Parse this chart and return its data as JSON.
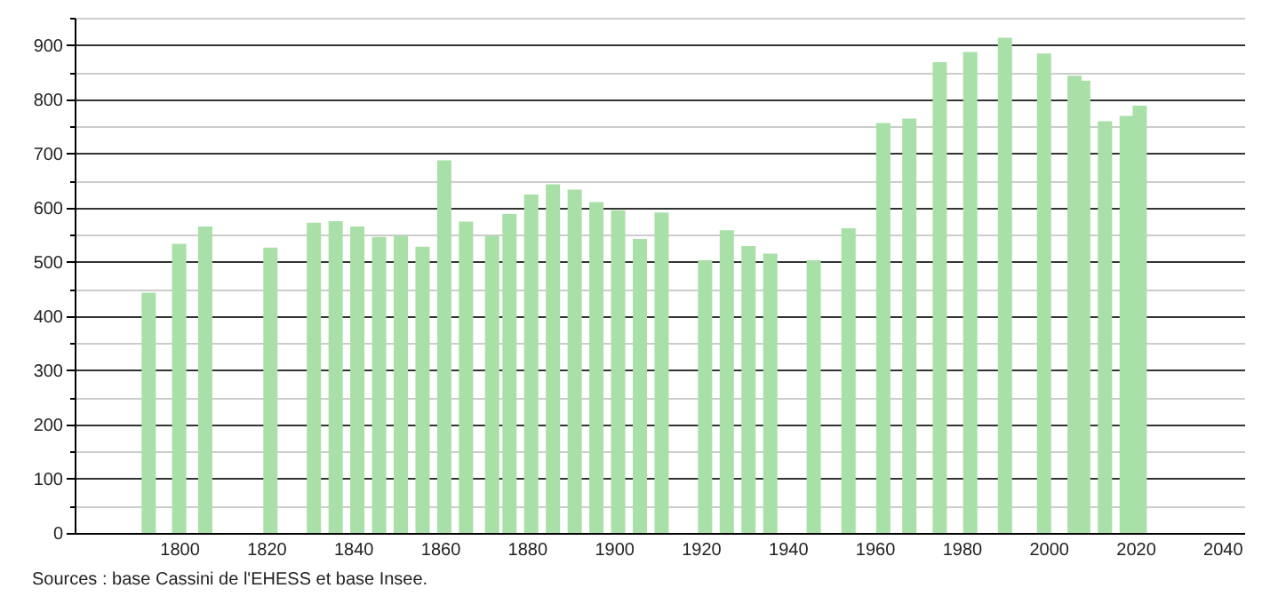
{
  "chart_data": {
    "type": "bar",
    "color": "#a8e0a8",
    "x": [
      1793,
      1800,
      1806,
      1821,
      1831,
      1836,
      1841,
      1846,
      1851,
      1856,
      1861,
      1866,
      1872,
      1876,
      1881,
      1886,
      1891,
      1896,
      1901,
      1906,
      1911,
      1921,
      1926,
      1931,
      1936,
      1946,
      1954,
      1962,
      1968,
      1975,
      1982,
      1990,
      1999,
      2006,
      2008,
      2013,
      2018,
      2021
    ],
    "values": [
      443,
      533,
      565,
      526,
      572,
      575,
      565,
      546,
      548,
      528,
      687,
      574,
      548,
      588,
      624,
      643,
      633,
      610,
      595,
      542,
      591,
      503,
      558,
      529,
      515,
      503,
      562,
      756,
      764,
      868,
      887,
      913,
      884,
      843,
      834,
      759,
      769,
      788
    ],
    "xlim": [
      1778,
      2043
    ],
    "xticks": [
      1800,
      1820,
      1840,
      1860,
      1880,
      1900,
      1920,
      1940,
      1960,
      1980,
      2000,
      2020,
      2040
    ],
    "ylim": [
      0,
      950
    ],
    "yticks": [
      0,
      {
        "value": 50,
        "label": null
      },
      100,
      {
        "value": 150,
        "label": null
      },
      200,
      {
        "value": 250,
        "label": null
      },
      300,
      {
        "value": 350,
        "label": null
      },
      400,
      {
        "value": 450,
        "label": null
      },
      500,
      {
        "value": 550,
        "label": null
      },
      600,
      {
        "value": 650,
        "label": null
      },
      700,
      {
        "value": 750,
        "label": null
      },
      800,
      {
        "value": 850,
        "label": null
      },
      900,
      {
        "value": 950,
        "label": null
      }
    ],
    "grid": "y",
    "annotations": [
      "Sources : base Cassini de l'EHESS et base Insee."
    ]
  }
}
